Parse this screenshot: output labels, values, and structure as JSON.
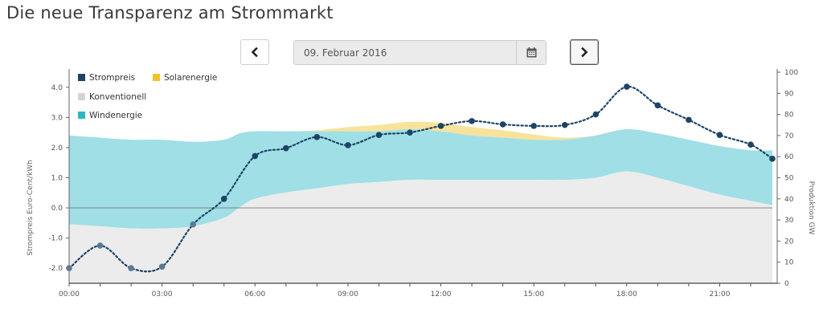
{
  "page": {
    "title": "Die neue Transparenz am Strommarkt"
  },
  "date_picker": {
    "value": "09. Februar 2016"
  },
  "icons": {
    "prev": "chevron-left-icon",
    "next": "chevron-right-icon",
    "calendar": "calendar-icon"
  },
  "chart_data": {
    "type": "area",
    "title": "",
    "xlabel": "",
    "ylabel": "Strompreis Euro-Cent/kWh",
    "y2label": "Produktion GW",
    "x_tick_labels": [
      "00:00",
      "03:00",
      "06:00",
      "09:00",
      "12:00",
      "15:00",
      "18:00",
      "21:00"
    ],
    "x_tick_hours": [
      0,
      3,
      6,
      9,
      12,
      15,
      18,
      21
    ],
    "xlim": [
      0,
      22.7
    ],
    "ylim": [
      -2.5,
      4.5
    ],
    "y_ticks": [
      -2.0,
      -1.0,
      0.0,
      1.0,
      2.0,
      3.0,
      4.0
    ],
    "y_tick_labels": [
      "-2.0",
      "-1.0",
      "0.0",
      "1.0",
      "2.0",
      "3.0",
      "4.0"
    ],
    "y2lim": [
      0,
      100
    ],
    "y2_ticks": [
      0,
      10,
      20,
      30,
      40,
      50,
      60,
      70,
      80,
      90,
      100
    ],
    "y2_tick_labels": [
      "0",
      "10",
      "20",
      "30",
      "40",
      "50",
      "60",
      "70",
      "80",
      "90",
      "100"
    ],
    "legend": [
      {
        "name": "Strompreis",
        "color": "#1d4466"
      },
      {
        "name": "Solarenergie",
        "color": "#f2c12e"
      },
      {
        "name": "Konventionell",
        "color": "#d4d4d4"
      },
      {
        "name": "Windenergie",
        "color": "#2bb8c4"
      }
    ],
    "legend_position": "top-left",
    "colors": {
      "konventionell_area": "#ececec",
      "wind_area": "#9fdfe5",
      "solar_area": "#f7e39c",
      "price_line": "#1d4466",
      "price_line_negative": "#5e7892",
      "zero_line": "#777777"
    },
    "series": [
      {
        "name": "Konventionell",
        "unit": "GW",
        "axis": "right",
        "x": [
          0,
          1,
          2,
          3,
          4,
          5,
          5.5,
          6,
          7,
          8,
          9,
          10,
          11,
          12,
          13,
          14,
          15,
          16,
          17,
          18,
          19,
          20,
          21,
          22,
          22.7
        ],
        "values": [
          28,
          27,
          26,
          26,
          27,
          31,
          36,
          40,
          43,
          45,
          47,
          48,
          49,
          49,
          49,
          49,
          49,
          49,
          50,
          53,
          50,
          46,
          42,
          39,
          37
        ]
      },
      {
        "name": "Windenergie",
        "unit": "GW",
        "axis": "right",
        "x": [
          0,
          1,
          2,
          3,
          4,
          5,
          5.5,
          6,
          7,
          8,
          9,
          10,
          11,
          12,
          13,
          14,
          15,
          16,
          17,
          18,
          19,
          20,
          21,
          22,
          22.7
        ],
        "values": [
          42,
          42,
          42,
          42,
          40,
          37,
          35,
          32,
          29,
          27,
          25,
          24,
          24,
          23,
          21,
          20,
          19,
          19,
          20,
          20,
          21,
          22,
          23,
          24,
          26
        ]
      },
      {
        "name": "Solarenergie",
        "unit": "GW",
        "axis": "right",
        "x": [
          0,
          1,
          2,
          3,
          4,
          5,
          5.5,
          6,
          7,
          8,
          9,
          10,
          11,
          12,
          13,
          14,
          15,
          16,
          17,
          18,
          19,
          20,
          21,
          22,
          22.7
        ],
        "values": [
          0,
          0,
          0,
          0,
          0,
          0,
          0,
          0,
          0,
          0.5,
          2,
          3,
          3.5,
          4,
          4,
          3.5,
          2.5,
          1,
          0,
          0,
          0,
          0,
          0,
          0,
          0
        ]
      },
      {
        "name": "Strompreis",
        "unit": "Euro-Cent/kWh",
        "axis": "left",
        "x": [
          0,
          1,
          2,
          3,
          4,
          5,
          6,
          7,
          8,
          9,
          10,
          11,
          12,
          13,
          14,
          15,
          16,
          17,
          18,
          19,
          20,
          21,
          22,
          22.7
        ],
        "values": [
          -2.0,
          -1.25,
          -2.0,
          -1.95,
          -0.55,
          0.3,
          1.72,
          1.98,
          2.35,
          2.08,
          2.42,
          2.5,
          2.72,
          2.88,
          2.77,
          2.72,
          2.75,
          3.1,
          4.02,
          3.4,
          2.92,
          2.42,
          2.1,
          1.63
        ]
      }
    ]
  }
}
